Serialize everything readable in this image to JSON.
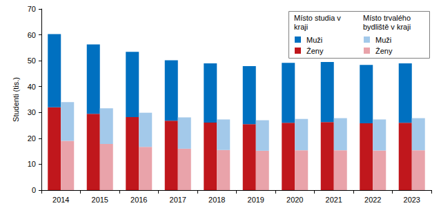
{
  "chart_data": {
    "type": "bar",
    "stacked": true,
    "grid": false,
    "legend": "top-right",
    "y_label": "Studenti (tis.)",
    "categories": [
      "2014",
      "2015",
      "2016",
      "2017",
      "2018",
      "2019",
      "2020",
      "2021",
      "2022",
      "2023"
    ],
    "ylim": [
      0,
      70
    ],
    "yticks": [
      0,
      10,
      20,
      30,
      40,
      50,
      60,
      70
    ],
    "groups": [
      {
        "title": "Místo studia v kraji",
        "series": [
          {
            "name": "Muži",
            "color": "#0070c0",
            "values": [
              28.3,
              26.8,
              25.2,
              23.4,
              22.9,
              22.4,
              23.2,
              23.2,
              22.6,
              23.0
            ]
          },
          {
            "name": "Ženy",
            "color": "#c0171c",
            "values": [
              32.0,
              29.5,
              28.2,
              26.8,
              26.1,
              25.5,
              26.0,
              26.3,
              25.8,
              26.0
            ]
          }
        ]
      },
      {
        "title": "Místo trvalého bydliště v kraji",
        "series": [
          {
            "name": "Muži",
            "color": "#a3c9ea",
            "values": [
              15.0,
              13.8,
              13.2,
              12.1,
              11.8,
              11.8,
              12.1,
              12.4,
              12.0,
              12.4
            ]
          },
          {
            "name": "Ženy",
            "color": "#e9a3aa",
            "values": [
              19.0,
              17.8,
              16.7,
              16.0,
              15.5,
              15.2,
              15.4,
              15.4,
              15.3,
              15.4
            ]
          }
        ]
      }
    ]
  }
}
